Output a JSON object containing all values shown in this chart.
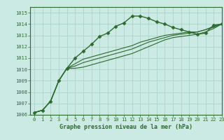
{
  "background_color": "#cceae4",
  "grid_color": "#aad4cc",
  "line_color": "#2d6a2d",
  "xlabel": "Graphe pression niveau de la mer (hPa)",
  "xlim": [
    -0.5,
    23
  ],
  "ylim": [
    1006,
    1015.5
  ],
  "yticks": [
    1006,
    1007,
    1008,
    1009,
    1010,
    1011,
    1012,
    1013,
    1014,
    1015
  ],
  "xticks": [
    0,
    1,
    2,
    3,
    4,
    5,
    6,
    7,
    8,
    9,
    10,
    11,
    12,
    13,
    14,
    15,
    16,
    17,
    18,
    19,
    20,
    21,
    22,
    23
  ],
  "series": [
    {
      "x": [
        0,
        1,
        2,
        3,
        4,
        5,
        6,
        7,
        8,
        9,
        10,
        11,
        12,
        13,
        14,
        15,
        16,
        17,
        18,
        19,
        20,
        21,
        22,
        23
      ],
      "y": [
        1006.2,
        1006.4,
        1007.2,
        1009.0,
        1010.1,
        1011.0,
        1011.6,
        1012.2,
        1012.9,
        1013.2,
        1013.8,
        1014.1,
        1014.7,
        1014.7,
        1014.5,
        1014.2,
        1014.0,
        1013.7,
        1013.5,
        1013.3,
        1013.1,
        1013.2,
        1013.9,
        1014.0
      ],
      "marker": "D",
      "marker_size": 2.5,
      "linewidth": 1.0
    },
    {
      "x": [
        0,
        1,
        2,
        3,
        4,
        5,
        6,
        7,
        8,
        9,
        10,
        11,
        12,
        13,
        14,
        15,
        16,
        17,
        18,
        19,
        20,
        21,
        22,
        23
      ],
      "y": [
        1006.2,
        1006.4,
        1007.2,
        1009.0,
        1010.1,
        1010.5,
        1010.9,
        1011.1,
        1011.3,
        1011.5,
        1011.7,
        1011.9,
        1012.1,
        1012.4,
        1012.6,
        1012.8,
        1013.0,
        1013.1,
        1013.2,
        1013.3,
        1013.3,
        1013.5,
        1013.8,
        1014.0
      ],
      "marker": null,
      "linewidth": 0.8
    },
    {
      "x": [
        0,
        1,
        2,
        3,
        4,
        5,
        6,
        7,
        8,
        9,
        10,
        11,
        12,
        13,
        14,
        15,
        16,
        17,
        18,
        19,
        20,
        21,
        22,
        23
      ],
      "y": [
        1006.2,
        1006.4,
        1007.2,
        1009.0,
        1010.1,
        1010.3,
        1010.6,
        1010.8,
        1011.0,
        1011.2,
        1011.4,
        1011.6,
        1011.8,
        1012.1,
        1012.4,
        1012.6,
        1012.8,
        1013.0,
        1013.1,
        1013.2,
        1013.3,
        1013.5,
        1013.7,
        1014.0
      ],
      "marker": null,
      "linewidth": 0.8
    },
    {
      "x": [
        0,
        1,
        2,
        3,
        4,
        5,
        6,
        7,
        8,
        9,
        10,
        11,
        12,
        13,
        14,
        15,
        16,
        17,
        18,
        19,
        20,
        21,
        22,
        23
      ],
      "y": [
        1006.2,
        1006.4,
        1007.2,
        1009.0,
        1010.1,
        1010.1,
        1010.2,
        1010.4,
        1010.6,
        1010.8,
        1011.0,
        1011.2,
        1011.4,
        1011.7,
        1012.0,
        1012.3,
        1012.6,
        1012.8,
        1012.9,
        1013.0,
        1013.1,
        1013.3,
        1013.6,
        1014.0
      ],
      "marker": null,
      "linewidth": 0.8
    }
  ],
  "tick_fontsize": 5.0,
  "xlabel_fontsize": 6.0,
  "fig_width": 3.2,
  "fig_height": 2.0,
  "dpi": 100
}
